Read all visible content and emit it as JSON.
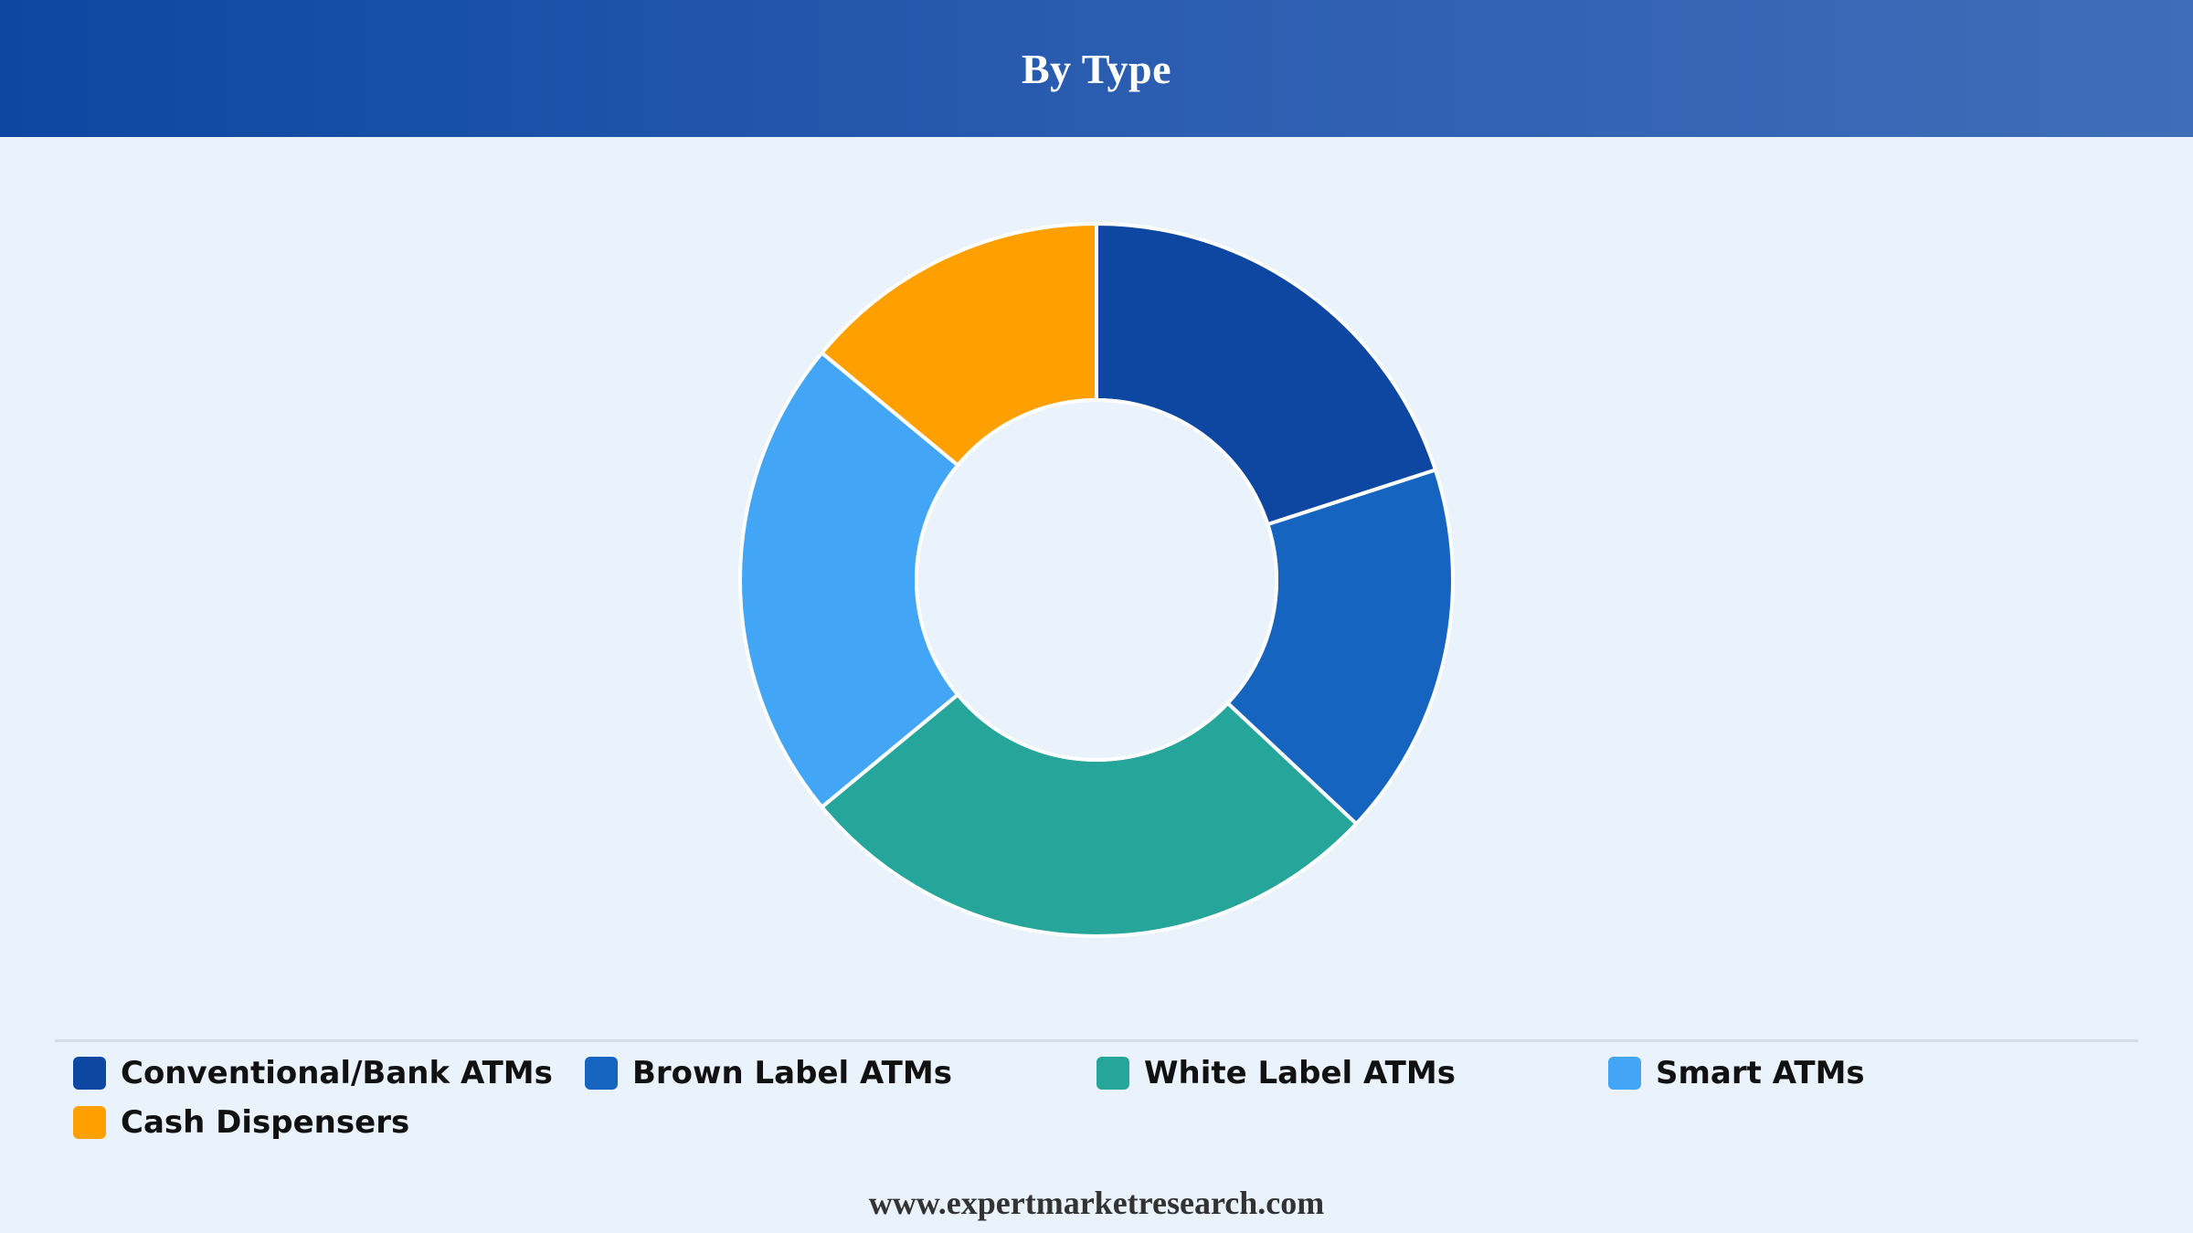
{
  "header": {
    "title": "By Type"
  },
  "chart_data": {
    "type": "pie",
    "variant": "donut",
    "title": "By Type",
    "categories": [
      "Conventional/Bank ATMs",
      "Brown Label ATMs",
      "White Label ATMs",
      "Smart ATMs",
      "Cash Dispensers"
    ],
    "values": [
      20,
      17,
      27,
      22,
      14
    ],
    "colors": [
      "#0d47a1",
      "#1565c0",
      "#26a69a",
      "#42a5f5",
      "#ffa000"
    ],
    "legend_position": "bottom",
    "start_angle": "top",
    "direction": "clockwise"
  },
  "legend": {
    "items": [
      {
        "label": "Conventional/Bank ATMs",
        "color": "#0d47a1"
      },
      {
        "label": "Brown Label ATMs",
        "color": "#1565c0"
      },
      {
        "label": "White Label ATMs",
        "color": "#26a69a"
      },
      {
        "label": "Smart ATMs",
        "color": "#42a5f5"
      },
      {
        "label": "Cash Dispensers",
        "color": "#ffa000"
      }
    ]
  },
  "footer": {
    "source": "www.expertmarketresearch.com"
  }
}
